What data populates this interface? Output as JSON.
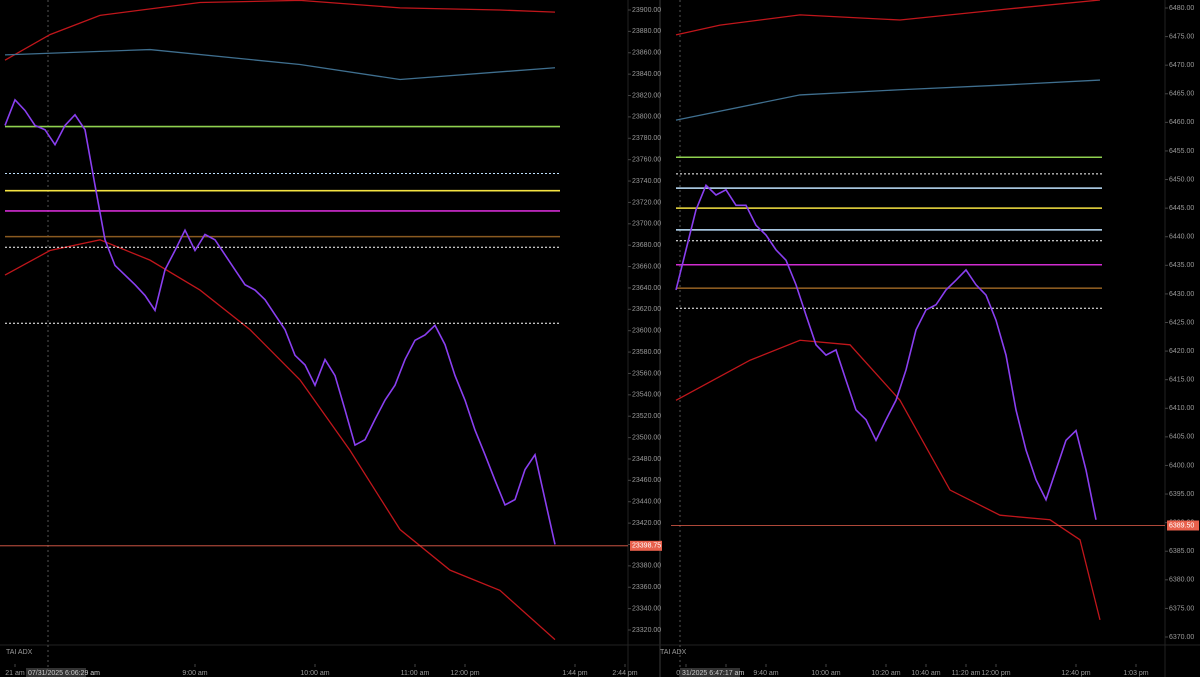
{
  "chart_data": [
    {
      "type": "line",
      "ylim": [
        23320,
        23900
      ],
      "yticks": [
        {
          "value": 23320,
          "label": "23320.00"
        },
        {
          "value": 23340,
          "label": "23340.00"
        },
        {
          "value": 23360,
          "label": "23360.00"
        },
        {
          "value": 23380,
          "label": "23380.00"
        },
        {
          "value": 23400,
          "label": "23400.00"
        },
        {
          "value": 23420,
          "label": "23420.00"
        },
        {
          "value": 23440,
          "label": "23440.00"
        },
        {
          "value": 23460,
          "label": "23460.00"
        },
        {
          "value": 23480,
          "label": "23480.00"
        },
        {
          "value": 23500,
          "label": "23500.00"
        },
        {
          "value": 23520,
          "label": "23520.00"
        },
        {
          "value": 23540,
          "label": "23540.00"
        },
        {
          "value": 23560,
          "label": "23560.00"
        },
        {
          "value": 23580,
          "label": "23580.00"
        },
        {
          "value": 23600,
          "label": "23600.00"
        },
        {
          "value": 23620,
          "label": "23620.00"
        },
        {
          "value": 23640,
          "label": "23640.00"
        },
        {
          "value": 23660,
          "label": "23660.00"
        },
        {
          "value": 23680,
          "label": "23680.00"
        },
        {
          "value": 23700,
          "label": "23700.00"
        },
        {
          "value": 23720,
          "label": "23720.00"
        },
        {
          "value": 23740,
          "label": "23740.00"
        },
        {
          "value": 23760,
          "label": "23760.00"
        },
        {
          "value": 23780,
          "label": "23780.00"
        },
        {
          "value": 23800,
          "label": "23800.00"
        },
        {
          "value": 23820,
          "label": "23820.00"
        },
        {
          "value": 23840,
          "label": "23840.00"
        },
        {
          "value": 23860,
          "label": "23860.00"
        },
        {
          "value": 23880,
          "label": "23880.00"
        },
        {
          "value": 23900,
          "label": "23900.00"
        }
      ],
      "categories": [
        null,
        "21 am",
        null,
        null,
        null,
        null,
        null,
        null,
        null,
        null,
        null,
        null,
        null,
        null,
        null,
        null,
        null,
        null,
        null,
        "9:00 am",
        null,
        null,
        null,
        null,
        null,
        null,
        null,
        null,
        null,
        null,
        null,
        "10:00 am",
        null,
        null,
        null,
        null,
        null,
        null,
        null,
        null,
        null,
        "11:00 am",
        null,
        null,
        null,
        null,
        "12:00 pm",
        null,
        null,
        null,
        null,
        null,
        null,
        null,
        null,
        null,
        null,
        "1:44 pm",
        null,
        null,
        null,
        null,
        "2:44 pm"
      ],
      "series": [
        {
          "color": "#8a3ff0",
          "values": [
            23792,
            23816,
            23806,
            23792,
            23788,
            23774,
            23792,
            23802,
            23788,
            23736,
            23685,
            23661,
            23652,
            23643,
            23633,
            23619,
            23657,
            23675,
            23694,
            23675,
            23690,
            23685,
            23671,
            23657,
            23643,
            23638,
            23629,
            23615,
            23601,
            23577,
            23568,
            23549,
            23573,
            23558,
            23526,
            23493,
            23498,
            23517,
            23535,
            23549,
            23573,
            23591,
            23596,
            23605,
            23587,
            23558,
            23535,
            23507,
            23484,
            23460,
            23437,
            23442,
            23470,
            23484,
            23442,
            23400,
            null,
            null,
            null,
            null,
            null,
            null,
            null
          ]
        }
      ],
      "bands": [
        {
          "color": "#c0161b",
          "x": [
            0,
            4.5,
            9.5,
            19.5,
            29.5,
            39.5,
            49.5,
            55
          ],
          "values": [
            23853,
            23877,
            23895,
            23907,
            23909,
            23902,
            23900,
            23898
          ]
        },
        {
          "color": "#3f6f8f",
          "x": [
            0,
            14.5,
            29.5,
            39.5,
            55
          ],
          "values": [
            23858,
            23863,
            23849,
            23835,
            23846
          ]
        },
        {
          "color": "#c0161b",
          "x": [
            0,
            4.5,
            9.5,
            14.5,
            19.5,
            24.5,
            29.5,
            34.5,
            39.5,
            44.5,
            49.5,
            55
          ],
          "values": [
            23652,
            23675,
            23685,
            23666,
            23638,
            23601,
            23554,
            23488,
            23414,
            23376,
            23357,
            23311
          ]
        }
      ],
      "hlines": [
        {
          "value": 23791,
          "color": "#8fd14f",
          "dash": false
        },
        {
          "value": 23747,
          "color": "#bfe3ff",
          "dash": true
        },
        {
          "value": 23731,
          "color": "#f5e342",
          "dash": false
        },
        {
          "value": 23712,
          "color": "#d12cd1",
          "dash": false
        },
        {
          "value": 23688,
          "color": "#8a5a20",
          "dash": false
        },
        {
          "value": 23678,
          "color": "#ffffff",
          "dash": true
        },
        {
          "value": 23607,
          "color": "#ffffff",
          "dash": true
        }
      ],
      "price_tag": {
        "value": 23398.75,
        "label": "23398.75",
        "color": "#e8604c"
      },
      "date_label": "07/31/2025 6:06:29 am",
      "indicator_label": "TAI ADX"
    },
    {
      "type": "line",
      "ylim": [
        6370,
        6480
      ],
      "yticks": [
        {
          "value": 6370,
          "label": "6370.00"
        },
        {
          "value": 6375,
          "label": "6375.00"
        },
        {
          "value": 6380,
          "label": "6380.00"
        },
        {
          "value": 6385,
          "label": "6385.00"
        },
        {
          "value": 6390,
          "label": "6390.00"
        },
        {
          "value": 6395,
          "label": "6395.00"
        },
        {
          "value": 6400,
          "label": "6400.00"
        },
        {
          "value": 6405,
          "label": "6405.00"
        },
        {
          "value": 6410,
          "label": "6410.00"
        },
        {
          "value": 6415,
          "label": "6415.00"
        },
        {
          "value": 6420,
          "label": "6420.00"
        },
        {
          "value": 6425,
          "label": "6425.00"
        },
        {
          "value": 6430,
          "label": "6430.00"
        },
        {
          "value": 6435,
          "label": "6435.00"
        },
        {
          "value": 6440,
          "label": "6440.00"
        },
        {
          "value": 6445,
          "label": "6445.00"
        },
        {
          "value": 6450,
          "label": "6450.00"
        },
        {
          "value": 6455,
          "label": "6455.00"
        },
        {
          "value": 6460,
          "label": "6460.00"
        },
        {
          "value": 6465,
          "label": "6465.00"
        },
        {
          "value": 6470,
          "label": "6470.00"
        },
        {
          "value": 6475,
          "label": "6475.00"
        },
        {
          "value": 6480,
          "label": "6480.00"
        }
      ],
      "categories": [
        null,
        "00 am",
        null,
        null,
        null,
        "9:20 am",
        null,
        null,
        null,
        "9:40 am",
        null,
        null,
        null,
        null,
        null,
        "10:00 am",
        null,
        null,
        null,
        null,
        null,
        "10:20 am",
        null,
        null,
        null,
        "10:40 am",
        null,
        null,
        null,
        "11:20 am",
        null,
        null,
        "12:00 pm",
        null,
        null,
        null,
        null,
        null,
        null,
        null,
        "12:40 pm",
        null,
        null,
        null,
        null,
        null,
        "1:03 pm",
        null,
        null
      ],
      "series": [
        {
          "color": "#8a3ff0",
          "values": [
            6430.7,
            6437.7,
            6444.7,
            6449.0,
            6447.3,
            6448.2,
            6445.5,
            6445.5,
            6442.0,
            6440.3,
            6437.7,
            6435.9,
            6431.6,
            6426.3,
            6421.1,
            6419.3,
            6420.2,
            6414.9,
            6409.7,
            6408.0,
            6404.4,
            6408.0,
            6411.4,
            6416.7,
            6423.7,
            6427.2,
            6428.1,
            6430.7,
            6432.4,
            6434.2,
            6431.6,
            6429.8,
            6425.4,
            6419.3,
            6409.7,
            6402.7,
            6397.5,
            6394.0,
            6399.2,
            6404.4,
            6406.1,
            6399.2,
            6390.5,
            null,
            null,
            null,
            null,
            null,
            null
          ]
        }
      ],
      "bands": [
        {
          "color": "#c0161b",
          "x": [
            0,
            4.4,
            12.4,
            22.4,
            32.4,
            42.4
          ],
          "values": [
            6475.3,
            6477.0,
            6478.8,
            6477.9,
            6479.7,
            6481.4
          ]
        },
        {
          "color": "#3f6f8f",
          "x": [
            0,
            12.4,
            22.4,
            32.4,
            42.4
          ],
          "values": [
            6460.4,
            6464.8,
            6465.7,
            6466.5,
            6467.4
          ]
        },
        {
          "color": "#c0161b",
          "x": [
            0,
            7.4,
            12.4,
            17.4,
            22.4,
            27.4,
            32.4,
            37.4,
            40.4,
            42.4
          ],
          "values": [
            6411.4,
            6418.4,
            6421.9,
            6421.1,
            6411.4,
            6395.7,
            6391.3,
            6390.5,
            6387.0,
            6373.0
          ]
        }
      ],
      "hlines": [
        {
          "value": 6453.9,
          "color": "#8fd14f",
          "dash": false
        },
        {
          "value": 6451.0,
          "color": "#ffffff",
          "dash": true
        },
        {
          "value": 6448.5,
          "color": "#bfe3ff",
          "dash": false
        },
        {
          "value": 6445.0,
          "color": "#f5e342",
          "dash": false
        },
        {
          "value": 6441.2,
          "color": "#bfe3ff",
          "dash": false
        },
        {
          "value": 6439.3,
          "color": "#ffffff",
          "dash": true
        },
        {
          "value": 6435.1,
          "color": "#d12cd1",
          "dash": false
        },
        {
          "value": 6431.0,
          "color": "#8a5a20",
          "dash": false
        },
        {
          "value": 6427.5,
          "color": "#ffffff",
          "dash": true
        }
      ],
      "price_tag": {
        "value": 6389.5,
        "label": "6389.50",
        "color": "#e8604c"
      },
      "date_label": "31/2025 6:47:17 am",
      "indicator_label": "TAI ADX"
    }
  ]
}
